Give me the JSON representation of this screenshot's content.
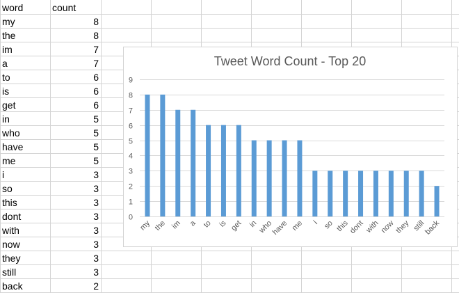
{
  "sheet": {
    "headers": {
      "word": "word",
      "count": "count"
    },
    "rows": [
      {
        "word": "my",
        "count": "8"
      },
      {
        "word": "the",
        "count": "8"
      },
      {
        "word": "im",
        "count": "7"
      },
      {
        "word": "a",
        "count": "7"
      },
      {
        "word": "to",
        "count": "6"
      },
      {
        "word": "is",
        "count": "6"
      },
      {
        "word": "get",
        "count": "6"
      },
      {
        "word": "in",
        "count": "5"
      },
      {
        "word": "who",
        "count": "5"
      },
      {
        "word": "have",
        "count": "5"
      },
      {
        "word": "me",
        "count": "5"
      },
      {
        "word": "i",
        "count": "3"
      },
      {
        "word": "so",
        "count": "3"
      },
      {
        "word": "this",
        "count": "3"
      },
      {
        "word": "dont",
        "count": "3"
      },
      {
        "word": "with",
        "count": "3"
      },
      {
        "word": "now",
        "count": "3"
      },
      {
        "word": "they",
        "count": "3"
      },
      {
        "word": "still",
        "count": "3"
      },
      {
        "word": "back",
        "count": "2"
      }
    ]
  },
  "chart_data": {
    "type": "bar",
    "title": "Tweet Word Count - Top 20",
    "xlabel": "",
    "ylabel": "",
    "categories": [
      "my",
      "the",
      "im",
      "a",
      "to",
      "is",
      "get",
      "in",
      "who",
      "have",
      "me",
      "i",
      "so",
      "this",
      "dont",
      "with",
      "now",
      "they",
      "still",
      "back"
    ],
    "values": [
      8,
      8,
      7,
      7,
      6,
      6,
      6,
      5,
      5,
      5,
      5,
      3,
      3,
      3,
      3,
      3,
      3,
      3,
      3,
      2
    ],
    "ylim": [
      0,
      9
    ],
    "yticks": [
      0,
      1,
      2,
      3,
      4,
      5,
      6,
      7,
      8,
      9
    ],
    "grid": true,
    "legend": "none",
    "bar_color": "#5b9bd5"
  },
  "colors": {
    "gridline": "#d9d9d9",
    "cell_border": "#d4d4d4",
    "axis_text": "#595959",
    "title_text": "#595959"
  }
}
